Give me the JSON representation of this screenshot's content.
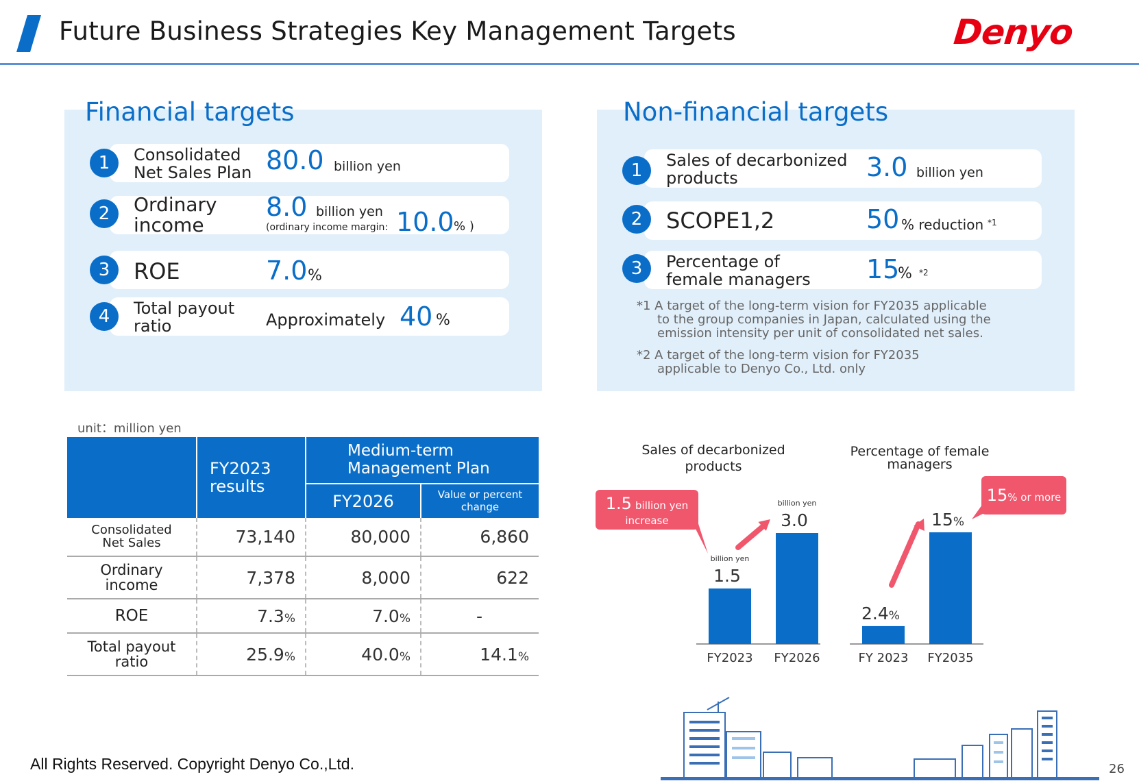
{
  "header": {
    "title": "Future Business Strategies  Key Management Targets",
    "logo_text": "Denyo"
  },
  "financial": {
    "title": "Financial targets",
    "items": [
      {
        "num": "1",
        "label_line1": "Consolidated",
        "label_line2": "Net Sales Plan",
        "value": "80.0",
        "unit": "billion yen"
      },
      {
        "num": "2",
        "label_line1": "Ordinary",
        "label_line2": "income",
        "value": "8.0",
        "unit": "billion yen",
        "sub_note": "(ordinary income margin:",
        "margin_value": "10.0",
        "margin_unit": "% )"
      },
      {
        "num": "3",
        "label": "ROE",
        "value": "7.0",
        "unit": "%"
      },
      {
        "num": "4",
        "label_line1": "Total payout",
        "label_line2": "ratio",
        "prefix": "Approximately",
        "value": "40",
        "unit": "%"
      }
    ]
  },
  "nonfinancial": {
    "title": "Non-financial targets",
    "items": [
      {
        "num": "1",
        "label_line1": "Sales of decarbonized",
        "label_line2": "products",
        "value": "3.0",
        "unit": "billion yen"
      },
      {
        "num": "2",
        "label": "SCOPE1,2",
        "value": "50",
        "unit": "% reduction",
        "mark": "*1"
      },
      {
        "num": "3",
        "label_line1": "Percentage of",
        "label_line2": "female managers",
        "value": "15",
        "unit": "%",
        "mark": "*2"
      }
    ],
    "notes": [
      {
        "line1": "*1 A target of the long-term vision for FY2035 applicable",
        "line2": "to the group companies in Japan, calculated using the",
        "line3": "emission intensity per unit of consolidated net sales."
      },
      {
        "line1": "*2 A target of the long-term vision for FY2035",
        "line2": "applicable to Denyo Co., Ltd. only"
      }
    ]
  },
  "table": {
    "unit_label": "unit：million yen",
    "col_fy2023": "FY2023 results",
    "col_fy2023_l1": "FY2023",
    "col_fy2023_l2": "results",
    "col_plan_l1": "Medium-term",
    "col_plan_l2": "Management Plan",
    "col_fy2026": "FY2026",
    "col_change_l1": "Value or percent",
    "col_change_l2": "change",
    "rows": [
      {
        "label_l1": "Consolidated",
        "label_l2": "Net Sales",
        "fy2023": "73,140",
        "fy2026": "80,000",
        "change": "6,860"
      },
      {
        "label_l1": "Ordinary",
        "label_l2": "income",
        "fy2023": "7,378",
        "fy2026": "8,000",
        "change": "622"
      },
      {
        "label_l1": "ROE",
        "label_l2": "",
        "fy2023": "7.3",
        "fy2023_unit": "%",
        "fy2026": "7.0",
        "fy2026_unit": "%",
        "change": "-"
      },
      {
        "label_l1": "Total payout",
        "label_l2": "ratio",
        "fy2023": "25.9",
        "fy2023_unit": "%",
        "fy2026": "40.0",
        "fy2026_unit": "%",
        "change": "14.1",
        "change_unit": "%"
      }
    ]
  },
  "chart_data": [
    {
      "type": "bar",
      "title": "Sales of decarbonized products",
      "title_l1": "Sales of decarbonized",
      "title_l2": "products",
      "categories": [
        "FY2023",
        "FY2026"
      ],
      "values": [
        1.5,
        3.0
      ],
      "value_labels": [
        "1.5",
        "3.0"
      ],
      "value_unit_label": "billion yen",
      "callout_value": "1.5",
      "callout_unit": "billion yen",
      "callout_l2": "increase",
      "color": "#0a6ec9",
      "ylim": [
        0,
        3.3
      ]
    },
    {
      "type": "bar",
      "title": "Percentage of female managers",
      "title_l1": "Percentage of female",
      "title_l2": "managers",
      "categories": [
        "FY 2023",
        "FY2035"
      ],
      "values": [
        2.4,
        15
      ],
      "value_labels": [
        "2.4",
        "15"
      ],
      "value_unit": "%",
      "callout_value": "15",
      "callout_unit": "% or more",
      "color": "#0a6ec9"
    }
  ],
  "footer": {
    "copyright": "All Rights Reserved. Copyright Denyo Co.,Ltd.",
    "page_number": "26"
  },
  "colors": {
    "accent": "#0a6ec9",
    "panel_bg": "#e1effa",
    "callout": "#f0566c",
    "logo": "#e60012"
  }
}
